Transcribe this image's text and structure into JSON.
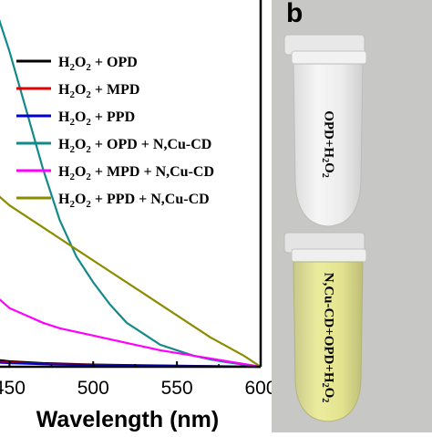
{
  "chart_data": {
    "type": "line",
    "xlabel": "Wavelength (nm)",
    "xlim": [
      440,
      600
    ],
    "xticks": [
      450,
      500,
      550,
      600
    ],
    "ylim": [
      0,
      1.0
    ],
    "grid": false,
    "legend_position": "top-right",
    "series": [
      {
        "name": "H2O2 + OPD",
        "color": "#000000",
        "x": [
          440,
          450,
          470,
          500,
          550,
          600
        ],
        "y": [
          0.02,
          0.015,
          0.01,
          0.006,
          0.003,
          0.0
        ]
      },
      {
        "name": "H2O2 + MPD",
        "color": "#dd0000",
        "x": [
          440,
          450,
          470,
          500,
          550,
          600
        ],
        "y": [
          0.015,
          0.012,
          0.008,
          0.005,
          0.002,
          0.0
        ]
      },
      {
        "name": "H2O2 + PPD",
        "color": "#0000cc",
        "x": [
          440,
          450,
          470,
          500,
          550,
          600
        ],
        "y": [
          0.012,
          0.01,
          0.007,
          0.004,
          0.002,
          0.0
        ]
      },
      {
        "name": "H2O2 + OPD + N,Cu-CD",
        "color": "#14898a",
        "x": [
          440,
          450,
          460,
          470,
          480,
          490,
          500,
          510,
          520,
          530,
          540,
          550,
          560,
          570,
          580,
          590,
          600
        ],
        "y": [
          1.0,
          0.86,
          0.7,
          0.54,
          0.4,
          0.3,
          0.23,
          0.17,
          0.12,
          0.09,
          0.06,
          0.045,
          0.03,
          0.02,
          0.012,
          0.006,
          0.0
        ]
      },
      {
        "name": "H2O2 + MPD + N,Cu-CD",
        "color": "#ff00ff",
        "x": [
          440,
          450,
          460,
          470,
          480,
          500,
          520,
          540,
          560,
          580,
          600
        ],
        "y": [
          0.2,
          0.16,
          0.14,
          0.12,
          0.105,
          0.085,
          0.065,
          0.045,
          0.03,
          0.015,
          0.0
        ]
      },
      {
        "name": "H2O2 + PPD + N,Cu-CD",
        "color": "#8c8c00",
        "x": [
          440,
          450,
          470,
          490,
          510,
          530,
          550,
          570,
          590,
          600
        ],
        "y": [
          0.48,
          0.44,
          0.38,
          0.32,
          0.26,
          0.2,
          0.14,
          0.08,
          0.03,
          0.0
        ]
      }
    ]
  },
  "panel_b": {
    "letter": "b",
    "tube_top_label": "OPD+H2O2",
    "tube_bottom_label": "N,Cu-CD+OPD+H2O2"
  }
}
